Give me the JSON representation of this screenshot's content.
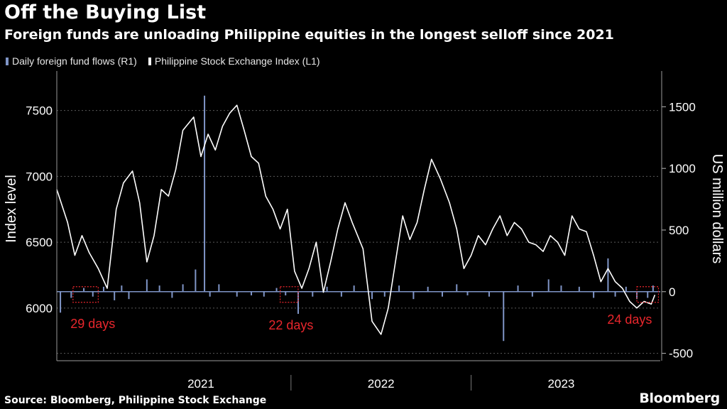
{
  "title": "Off the Buying List",
  "subtitle": "Foreign funds are unloading Philippine equities in the longest selloff since 2021",
  "legend": {
    "flows": "Daily foreign fund flows (R1)",
    "index": "Philippine Stock Exchange Index  (L1)"
  },
  "source": "Source: Bloomberg, Philippine Stock Exchange",
  "brand": "Bloomberg",
  "colors": {
    "background": "#000000",
    "index_line": "#ffffff",
    "flows_bars": "#7f95c7",
    "annotation": "#e8262c",
    "grid": "#5a5a5a"
  },
  "chart_data": {
    "type": "line",
    "title": "Off the Buying List",
    "ylabel_left": "Index level",
    "ylabel_right": "US million dollars",
    "left_axis": {
      "range": [
        5600,
        7800
      ],
      "ticks": [
        6000,
        6500,
        7000,
        7500
      ]
    },
    "right_axis": {
      "range": [
        -560,
        1790
      ],
      "ticks": [
        -500,
        0,
        500,
        1000,
        1500
      ]
    },
    "x_range": [
      2020.7,
      2024.05
    ],
    "x_ticks": [
      {
        "label": "2021",
        "position": 2021.5
      },
      {
        "label": "2022",
        "position": 2022.5
      },
      {
        "label": "2023",
        "position": 2023.5
      }
    ],
    "x_dividers": [
      2022.0,
      2023.0
    ],
    "series": [
      {
        "name": "Philippine Stock Exchange Index (L1)",
        "axis": "left",
        "type": "line",
        "x": [
          2020.7,
          2020.76,
          2020.8,
          2020.84,
          2020.88,
          2020.93,
          2020.98,
          2021.03,
          2021.07,
          2021.12,
          2021.16,
          2021.2,
          2021.24,
          2021.28,
          2021.32,
          2021.36,
          2021.4,
          2021.46,
          2021.5,
          2021.54,
          2021.58,
          2021.62,
          2021.66,
          2021.7,
          2021.74,
          2021.78,
          2021.82,
          2021.86,
          2021.9,
          2021.94,
          2021.98,
          2022.02,
          2022.06,
          2022.1,
          2022.14,
          2022.18,
          2022.22,
          2022.26,
          2022.3,
          2022.34,
          2022.4,
          2022.45,
          2022.5,
          2022.54,
          2022.58,
          2022.62,
          2022.66,
          2022.7,
          2022.74,
          2022.78,
          2022.83,
          2022.88,
          2022.92,
          2022.96,
          2023.0,
          2023.04,
          2023.08,
          2023.12,
          2023.16,
          2023.2,
          2023.24,
          2023.28,
          2023.32,
          2023.36,
          2023.4,
          2023.44,
          2023.48,
          2023.52,
          2023.56,
          2023.6,
          2023.64,
          2023.68,
          2023.72,
          2023.76,
          2023.8,
          2023.84,
          2023.88,
          2023.92,
          2023.96,
          2024.0,
          2024.02
        ],
        "values": [
          6900,
          6650,
          6400,
          6550,
          6420,
          6300,
          6150,
          6750,
          6950,
          7040,
          6800,
          6350,
          6550,
          6900,
          6850,
          7050,
          7350,
          7450,
          7150,
          7320,
          7200,
          7380,
          7480,
          7540,
          7350,
          7150,
          7100,
          6850,
          6750,
          6600,
          6750,
          6280,
          6150,
          6300,
          6500,
          6120,
          6350,
          6600,
          6800,
          6650,
          6450,
          5900,
          5800,
          6000,
          6350,
          6700,
          6520,
          6650,
          6900,
          7130,
          6980,
          6800,
          6600,
          6300,
          6400,
          6550,
          6480,
          6600,
          6700,
          6550,
          6650,
          6600,
          6500,
          6480,
          6430,
          6550,
          6500,
          6400,
          6700,
          6600,
          6580,
          6400,
          6200,
          6300,
          6200,
          6150,
          6050,
          6000,
          6050,
          6030,
          6100
        ]
      },
      {
        "name": "Daily foreign fund flows (R1)",
        "axis": "right",
        "type": "bar",
        "x": [
          2020.72,
          2020.78,
          2020.85,
          2020.9,
          2020.96,
          2021.02,
          2021.06,
          2021.1,
          2021.2,
          2021.27,
          2021.34,
          2021.4,
          2021.47,
          2021.52,
          2021.55,
          2021.6,
          2021.7,
          2021.78,
          2021.85,
          2021.92,
          2021.97,
          2022.04,
          2022.12,
          2022.2,
          2022.28,
          2022.35,
          2022.45,
          2022.52,
          2022.6,
          2022.68,
          2022.76,
          2022.84,
          2022.92,
          2022.98,
          2023.1,
          2023.18,
          2023.26,
          2023.34,
          2023.43,
          2023.5,
          2023.6,
          2023.68,
          2023.76,
          2023.8,
          2023.86,
          2023.92,
          2023.98,
          2024.01
        ],
        "values": [
          -170,
          -50,
          30,
          -40,
          40,
          -70,
          50,
          -60,
          100,
          50,
          -50,
          60,
          180,
          1590,
          -40,
          60,
          -40,
          -30,
          -40,
          30,
          -30,
          -180,
          -40,
          40,
          -40,
          50,
          -60,
          -40,
          50,
          -60,
          40,
          -40,
          60,
          -30,
          -40,
          -400,
          50,
          -40,
          100,
          50,
          40,
          -50,
          270,
          -40,
          40,
          -60,
          -50,
          50
        ]
      }
    ],
    "annotations": [
      {
        "text": "29 days",
        "x_start": 2020.79,
        "x_end": 2020.93,
        "label_x": 2020.9
      },
      {
        "text": "22 days",
        "x_start": 2021.94,
        "x_end": 2022.04,
        "label_x": 2022.0
      },
      {
        "text": "24 days",
        "x_start": 2023.92,
        "x_end": 2024.04,
        "label_x": 2023.88
      }
    ]
  }
}
